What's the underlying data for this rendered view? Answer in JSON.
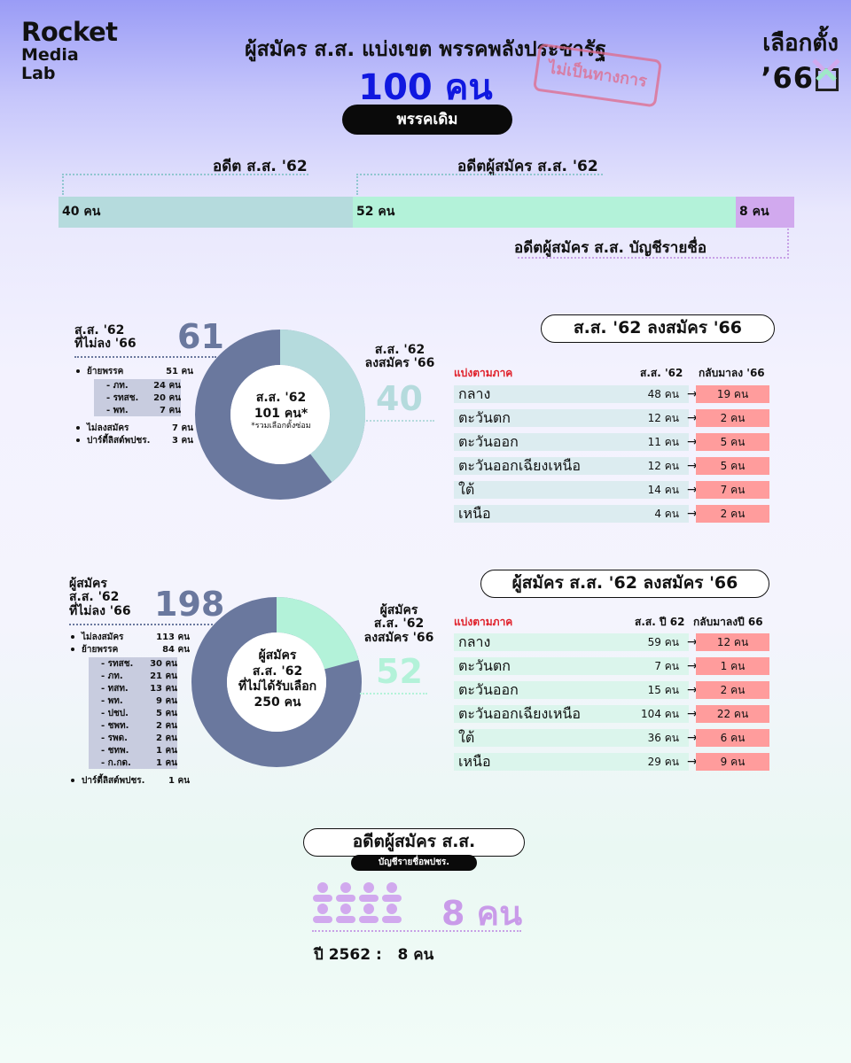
{
  "header": {
    "logo": [
      "Rocket",
      "Media",
      "Lab"
    ],
    "brand_line1": "เลือกตั้ง",
    "brand_line2": "’66",
    "title": "ผู้สมัคร ส.ส. แบ่งเขต พรรคพลังประชารัฐ",
    "total": "100 คน",
    "party_pill": "พรรคเดิม",
    "stamp": "ไม่เป็นทางการ"
  },
  "colors": {
    "teal": "#b5dbdd",
    "mint": "#b3f2d9",
    "purple": "#d1a9ee",
    "slate": "#6a789e",
    "red_cell": "#ff9c9c",
    "blue": "#1018e0"
  },
  "stack_labels": {
    "former_mp": "อดีต ส.ส. '62",
    "former_candidate": "อดีตผู้สมัคร ส.ส. '62",
    "former_party_list": "อดีตผู้สมัคร ส.ส. บัญชีรายชื่อ"
  },
  "chart_data": [
    {
      "type": "bar",
      "orientation": "stacked-horizontal",
      "categories": [
        "อดีต ส.ส. '62",
        "อดีตผู้สมัคร ส.ส. '62",
        "อดีตผู้สมัคร ส.ส. บัญชีรายชื่อ"
      ],
      "values": [
        40,
        52,
        8
      ],
      "data_labels": [
        "40 คน",
        "52 คน",
        "8 คน"
      ],
      "total": 100
    },
    {
      "type": "pie",
      "center_lines": [
        "ส.ส. '62",
        "101 คน*"
      ],
      "center_note": "*รวมเลือกตั้งซ่อม",
      "slices": [
        {
          "label": "ส.ส. '62 ลงสมัคร '66",
          "value": 40
        },
        {
          "label": "ส.ส. '62 ที่ไม่ลง '66",
          "value": 61
        }
      ],
      "left_title": [
        "ส.ส. '62",
        "ที่ไม่ลง '66"
      ],
      "left_value": "61",
      "right_title": [
        "ส.ส. '62",
        "ลงสมัคร '66"
      ],
      "right_value": "40",
      "breakdown": [
        {
          "label": "ย้ายพรรค",
          "value": "51 คน",
          "sub": [
            {
              "label": "- ภท.",
              "value": "24 คน"
            },
            {
              "label": "- รทสช.",
              "value": "20 คน"
            },
            {
              "label": "- พท.",
              "value": "7 คน"
            }
          ]
        },
        {
          "label": "ไม่ลงสมัคร",
          "value": "7 คน",
          "sub": []
        },
        {
          "label": "ปาร์ตี้ลิสต์พปชร.",
          "value": "3 คน",
          "sub": []
        }
      ]
    },
    {
      "type": "table",
      "title": "ส.ส. '62 ลงสมัคร '66",
      "columns": [
        "แบ่งตามภาค",
        "ส.ส. '62",
        "กลับมาลง '66"
      ],
      "rows": [
        {
          "region": "กลาง",
          "v62": "48 คน",
          "v66": "19 คน"
        },
        {
          "region": "ตะวันตก",
          "v62": "12 คน",
          "v66": "2 คน"
        },
        {
          "region": "ตะวันออก",
          "v62": "11 คน",
          "v66": "5 คน"
        },
        {
          "region": "ตะวันออกเฉียงเหนือ",
          "v62": "12 คน",
          "v66": "5 คน"
        },
        {
          "region": "ใต้",
          "v62": "14 คน",
          "v66": "7 คน"
        },
        {
          "region": "เหนือ",
          "v62": "4 คน",
          "v66": "2 คน"
        }
      ]
    },
    {
      "type": "pie",
      "center_lines": [
        "ผู้สมัคร",
        "ส.ส. '62",
        "ที่ไม่ได้รับเลือก",
        "250 คน"
      ],
      "slices": [
        {
          "label": "ผู้สมัคร ส.ส. '62 ลงสมัคร '66",
          "value": 52
        },
        {
          "label": "ผู้สมัคร ส.ส. '62 ที่ไม่ลง '66",
          "value": 198
        }
      ],
      "left_title": [
        "ผู้สมัคร",
        "ส.ส. '62",
        "ที่ไม่ลง '66"
      ],
      "left_value": "198",
      "right_title": [
        "ผู้สมัคร",
        "ส.ส. '62",
        "ลงสมัคร '66"
      ],
      "right_value": "52",
      "breakdown": [
        {
          "label": "ไม่ลงสมัคร",
          "value": "113 คน",
          "sub": []
        },
        {
          "label": "ย้ายพรรค",
          "value": "84 คน",
          "sub": [
            {
              "label": "- รทสช.",
              "value": "30 คน"
            },
            {
              "label": "- ภท.",
              "value": "21 คน"
            },
            {
              "label": "- ทสท.",
              "value": "13 คน"
            },
            {
              "label": "- พท.",
              "value": "9 คน"
            },
            {
              "label": "- ปชป.",
              "value": "5 คน"
            },
            {
              "label": "- ชพท.",
              "value": "2 คน"
            },
            {
              "label": "- รพด.",
              "value": "2 คน"
            },
            {
              "label": "- ชทพ.",
              "value": "1 คน"
            },
            {
              "label": "- ก.กด.",
              "value": "1 คน"
            }
          ]
        },
        {
          "label": "ปาร์ตี้ลิสต์พปชร.",
          "value": "1 คน",
          "sub": []
        }
      ]
    },
    {
      "type": "table",
      "title": "ผู้สมัคร ส.ส. '62 ลงสมัคร '66",
      "columns": [
        "แบ่งตามภาค",
        "ส.ส. ปี 62",
        "กลับมาลงปี 66"
      ],
      "rows": [
        {
          "region": "กลาง",
          "v62": "59 คน",
          "v66": "12 คน"
        },
        {
          "region": "ตะวันตก",
          "v62": "7 คน",
          "v66": "1 คน"
        },
        {
          "region": "ตะวันออก",
          "v62": "15 คน",
          "v66": "2 คน"
        },
        {
          "region": "ตะวันออกเฉียงเหนือ",
          "v62": "104 คน",
          "v66": "22 คน"
        },
        {
          "region": "ใต้",
          "v62": "36 คน",
          "v66": "6 คน"
        },
        {
          "region": "เหนือ",
          "v62": "29 คน",
          "v66": "9 คน"
        }
      ]
    }
  ],
  "party_list_section": {
    "title": "อดีตผู้สมัคร ส.ส.",
    "subtitle": "บัญชีรายชื่อพปชร.",
    "count": "8 คน",
    "people_icons": 8,
    "year_line_label": "ปี 2562 :",
    "year_line_value": "8 คน"
  }
}
